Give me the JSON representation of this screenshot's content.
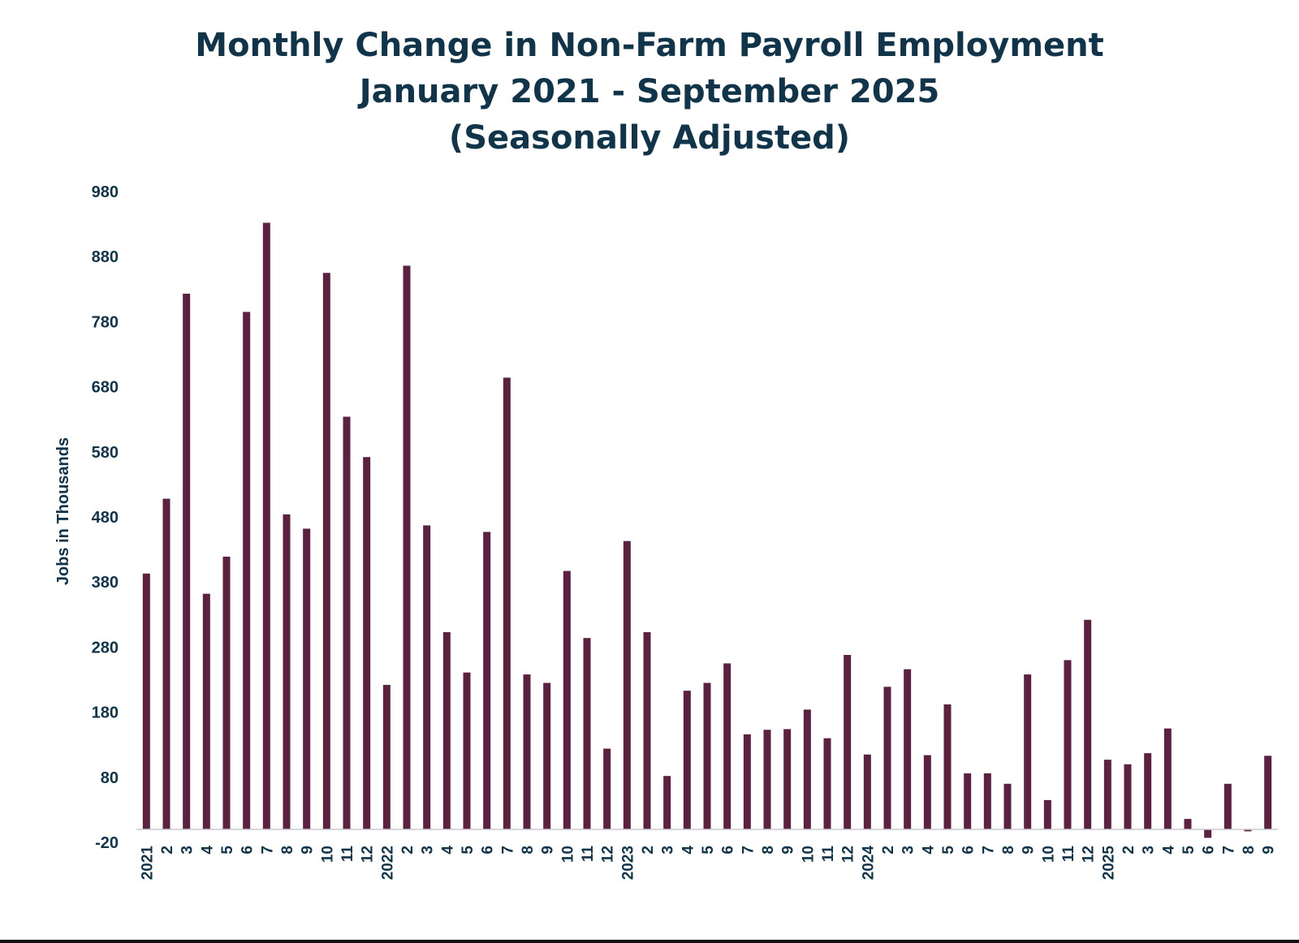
{
  "chart_data": {
    "type": "bar",
    "title_lines": [
      "Monthly Change in Non-Farm Payroll Employment",
      "January 2021 - September 2025",
      "(Seasonally Adjusted)"
    ],
    "xlabel": "",
    "ylabel": "Jobs in Thousands",
    "ylim": [
      -20,
      980
    ],
    "yticks": [
      "980",
      "880",
      "780",
      "680",
      "580",
      "480",
      "380",
      "280",
      "180",
      "80",
      "-20"
    ],
    "bar_color": "#5c2040",
    "categories": [
      "2021",
      "2",
      "3",
      "4",
      "5",
      "6",
      "7",
      "8",
      "9",
      "10",
      "11",
      "12",
      "2022",
      "2",
      "3",
      "4",
      "5",
      "6",
      "7",
      "8",
      "9",
      "10",
      "11",
      "12",
      "2023",
      "2",
      "3",
      "4",
      "5",
      "6",
      "7",
      "8",
      "9",
      "10",
      "11",
      "12",
      "2024",
      "2",
      "3",
      "4",
      "5",
      "6",
      "7",
      "8",
      "9",
      "10",
      "11",
      "12",
      "2025",
      "2",
      "3",
      "4",
      "5",
      "6",
      "7",
      "8",
      "9"
    ],
    "values": [
      393,
      508,
      823,
      362,
      419,
      795,
      932,
      484,
      462,
      855,
      634,
      572,
      222,
      866,
      467,
      303,
      241,
      457,
      694,
      238,
      225,
      397,
      294,
      124,
      443,
      303,
      82,
      213,
      225,
      255,
      146,
      153,
      154,
      184,
      140,
      268,
      115,
      219,
      246,
      114,
      192,
      86,
      86,
      70,
      238,
      45,
      260,
      322,
      107,
      100,
      117,
      155,
      16,
      -13,
      70,
      -3,
      113
    ]
  }
}
